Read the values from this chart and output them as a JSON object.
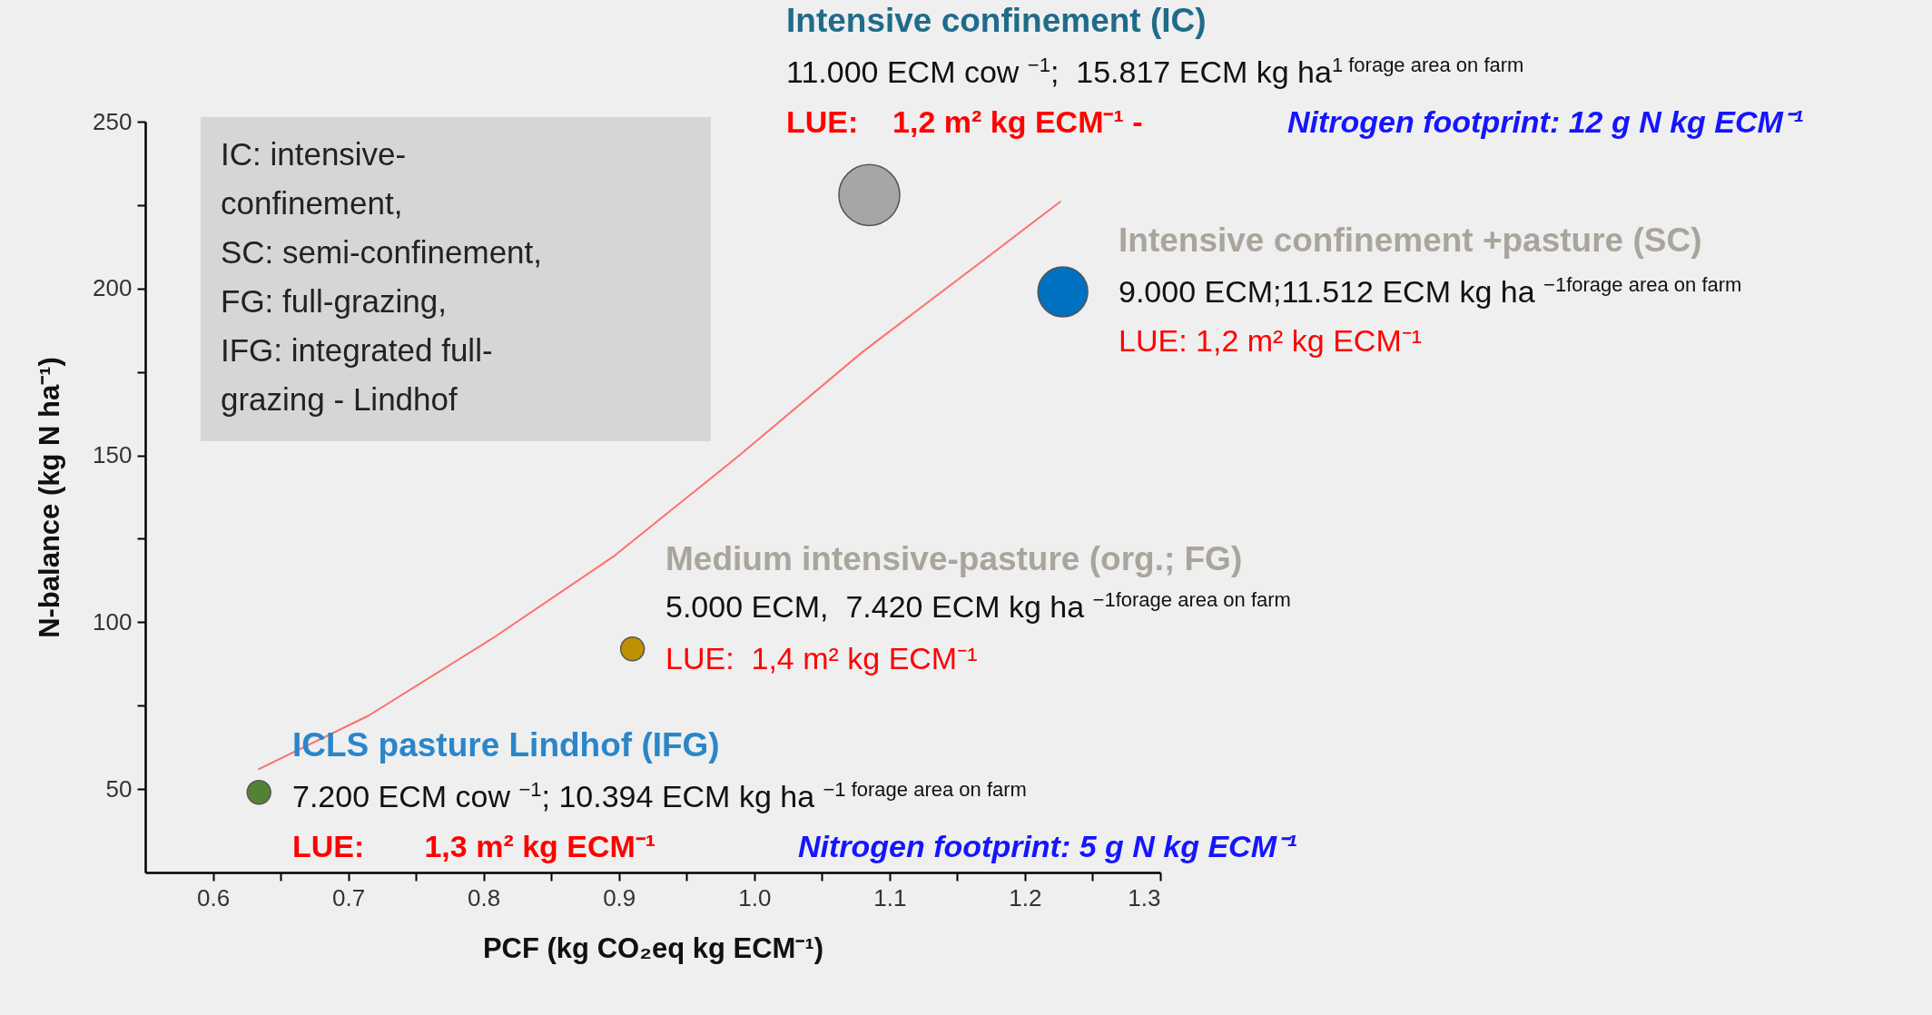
{
  "chart_data": {
    "type": "bubble",
    "xlabel": "PCF (kg CO₂eq kg ECM⁻¹)",
    "ylabel": "N-balance (kg N ha⁻¹)",
    "xlim": [
      0.55,
      1.3
    ],
    "xticks": [
      0.6,
      {
        "value": 0.65,
        "label": null
      },
      0.7,
      {
        "value": 0.75,
        "label": null
      },
      0.8,
      {
        "value": 0.85,
        "label": null
      },
      0.9,
      {
        "value": 0.95,
        "label": null
      },
      {
        "value": 1.0,
        "label": "1.0"
      },
      {
        "value": 1.05,
        "label": null
      },
      1.1,
      {
        "value": 1.15,
        "label": null
      },
      1.2,
      {
        "value": 1.25,
        "label": null
      },
      1.3
    ],
    "ylim": [
      25,
      250
    ],
    "yticks": [
      50,
      {
        "value": 75,
        "label": null
      },
      100,
      {
        "value": 125,
        "label": null
      },
      150,
      {
        "value": 175,
        "label": null
      },
      200,
      {
        "value": 225,
        "label": null
      },
      250
    ],
    "series": [
      {
        "color": "#a6a6a6",
        "marker": "circle",
        "x": [
          1.085
        ],
        "values": [
          228
        ],
        "sizes": [
          1
        ]
      },
      {
        "color": "#0070c0",
        "marker": "circle",
        "x": [
          1.228
        ],
        "values": [
          199
        ],
        "sizes": [
          0.67
        ]
      },
      {
        "color": "#bf9000",
        "marker": "circle",
        "x": [
          0.91
        ],
        "values": [
          92
        ],
        "sizes": [
          0.15
        ]
      },
      {
        "color": "#548235",
        "marker": "circle",
        "x": [
          0.634
        ],
        "values": [
          49
        ],
        "sizes": [
          0.15
        ]
      },
      {
        "type": "line",
        "color": "#ff6f6f",
        "x": [
          0.634,
          0.715,
          0.806,
          0.897,
          0.989,
          1.08,
          1.171,
          1.226
        ],
        "values": [
          56,
          72,
          95,
          120,
          150,
          181,
          209,
          226
        ]
      }
    ],
    "annotations": [
      "Intensive confinement (IC)",
      "11.000 ECM cow $^{−1}$;  15.817 ECM kg ha$^{1 forage area on farm}$",
      "LUE:    1,2 m² kg ECM⁻¹ -",
      "Nitrogen footprint: 12 g N kg ECM⁻¹",
      "Intensive confinement +pasture (SC)",
      "9.000 ECM;11.512 ECM kg ha $^{−1forage area on farm}$",
      "LUE: 1,2 m² kg ECM⁻¹",
      "Medium intensive-pasture (org.; FG)",
      "5.000 ECM,  7.420 ECM kg ha $^{−1forage area on farm}$",
      "LUE:  1,4 m² kg ECM⁻¹",
      "ICLS pasture Lindhof (IFG)",
      "7.200 ECM cow $^{−1}$; 10.394 ECM kg ha $^{−1 forage area on farm}$",
      "LUE:       1,3 m² kg ECM⁻¹",
      "Nitrogen footprint: 5 g N kg ECM⁻¹",
      "IC: intensive-\nconfinement,\nSC: semi-confinement,\nFG: full-grazing,\nIFG: integrated full-\ngrazing - Lindhof"
    ]
  }
}
